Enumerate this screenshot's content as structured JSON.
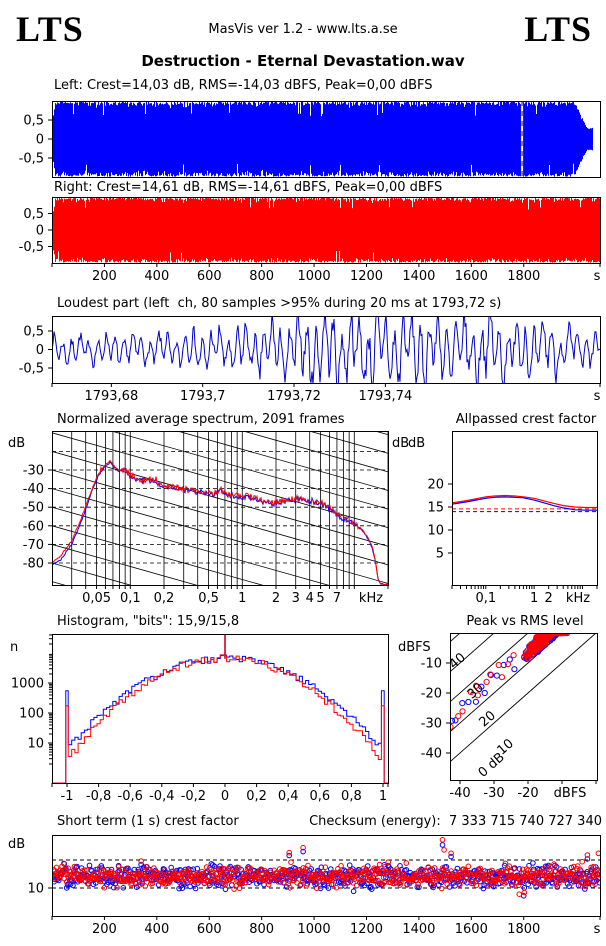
{
  "header": {
    "logo_left": "LTS",
    "logo_right": "LTS",
    "center_text": "MasVis ver 1.2 - www.lts.a.se",
    "file_title": "Destruction - Eternal Devastation.wav"
  },
  "colors": {
    "blue": "#0000ff",
    "red": "#ff0000",
    "line_blue": "#0000cc"
  },
  "chart_data": [
    {
      "type": "waveform",
      "channel": "left",
      "label": "Left: Crest=14,03 dB, RMS=-14,03 dBFS, Peak=0,00 dBFS",
      "crest_db": "14,03",
      "rms_dbfs": "-14,03",
      "peak_dbfs": "0,00",
      "color": "#0000ff",
      "duration_s": 2091,
      "marker_s": 1793.72,
      "ytick_labels": [
        "0,5",
        "0",
        "-0,5"
      ],
      "ytick_values": [
        0.5,
        0,
        -0.5
      ],
      "ylim": [
        -1,
        1
      ]
    },
    {
      "type": "waveform",
      "channel": "right",
      "label": "Right: Crest=14,61 dB, RMS=-14,61 dBFS, Peak=0,00 dBFS",
      "crest_db": "14,61",
      "rms_dbfs": "-14,61",
      "peak_dbfs": "0,00",
      "color": "#ff0000",
      "duration_s": 2091,
      "ytick_labels": [
        "0,5",
        "0",
        "-0,5"
      ],
      "ytick_values": [
        0.5,
        0,
        -0.5
      ],
      "ylim": [
        -1,
        1
      ],
      "xtick_labels": [
        "200",
        "400",
        "600",
        "800",
        "1000",
        "1200",
        "1400",
        "1600",
        "1800"
      ],
      "xtick_values": [
        200,
        400,
        600,
        800,
        1000,
        1200,
        1400,
        1600,
        1800
      ],
      "x_unit": "s"
    },
    {
      "type": "line",
      "title": "Loudest part (left  ch, 80 samples >95% during 20 ms at 1793,72 s)",
      "color": "#0000cc",
      "x_range": [
        1793.667,
        1793.787
      ],
      "xtick_labels": [
        "1793,68",
        "1793,7",
        "1793,72",
        "1793,74"
      ],
      "xtick_values": [
        1793.68,
        1793.7,
        1793.72,
        1793.74
      ],
      "x_unit": "s",
      "ytick_labels": [
        "0,5",
        "0",
        "-0,5"
      ],
      "ytick_values": [
        0.5,
        0,
        -0.5
      ],
      "ylim": [
        -0.905,
        0.905
      ]
    },
    {
      "type": "line",
      "title": "Normalized average spectrum, 2091 frames",
      "frames": 2091,
      "ylabel": "dB",
      "ylabel_right": "dB",
      "x_unit": "kHz",
      "x_log_range_khz": [
        0.02,
        20
      ],
      "xtick_labels": [
        "0,05",
        "0,1",
        "0,2",
        "0,5",
        "1",
        "2",
        "3",
        "4",
        "5",
        "7"
      ],
      "xtick_values": [
        0.05,
        0.1,
        0.2,
        0.5,
        1,
        2,
        3,
        4,
        5,
        7
      ],
      "xgrid_values": [
        0.03,
        0.04,
        0.05,
        0.06,
        0.07,
        0.08,
        0.09,
        0.1,
        0.2,
        0.3,
        0.4,
        0.5,
        0.6,
        0.7,
        0.8,
        0.9,
        1,
        2,
        3,
        4,
        5,
        6,
        7,
        8,
        9,
        10,
        20
      ],
      "ytick_labels": [
        "-30",
        "-40",
        "-50",
        "-60",
        "-70",
        "-80"
      ],
      "ytick_values": [
        -30,
        -40,
        -50,
        -60,
        -70,
        -80
      ],
      "ygrid_dashed": [
        -20,
        -30,
        -40,
        -50,
        -60,
        -70,
        -80
      ],
      "diagonal_slope_db_per_decade": -17,
      "series": [
        {
          "name": "left",
          "color": "#0000ff",
          "points": [
            [
              0.02,
              -81
            ],
            [
              0.024,
              -78
            ],
            [
              0.03,
              -70
            ],
            [
              0.037,
              -57
            ],
            [
              0.045,
              -42
            ],
            [
              0.052,
              -33
            ],
            [
              0.06,
              -28
            ],
            [
              0.066,
              -25.8
            ],
            [
              0.072,
              -28.5
            ],
            [
              0.08,
              -31
            ],
            [
              0.088,
              -29.5
            ],
            [
              0.1,
              -33
            ],
            [
              0.115,
              -35
            ],
            [
              0.13,
              -36
            ],
            [
              0.15,
              -35.5
            ],
            [
              0.18,
              -38
            ],
            [
              0.22,
              -39
            ],
            [
              0.28,
              -40
            ],
            [
              0.35,
              -41.5
            ],
            [
              0.45,
              -42
            ],
            [
              0.55,
              -43
            ],
            [
              0.65,
              -40.8
            ],
            [
              0.75,
              -43.5
            ],
            [
              0.9,
              -44
            ],
            [
              1.1,
              -44.5
            ],
            [
              1.4,
              -46
            ],
            [
              1.8,
              -48.5
            ],
            [
              2.2,
              -47
            ],
            [
              2.8,
              -46
            ],
            [
              3.5,
              -45.8
            ],
            [
              4.2,
              -47
            ],
            [
              5,
              -48
            ],
            [
              6,
              -51
            ],
            [
              7,
              -54.5
            ],
            [
              8,
              -56.5
            ],
            [
              9,
              -57.5
            ],
            [
              10,
              -59
            ],
            [
              11.5,
              -62
            ],
            [
              13,
              -66
            ],
            [
              14.5,
              -72
            ],
            [
              15.5,
              -80
            ],
            [
              16.2,
              -88
            ],
            [
              17,
              -91
            ],
            [
              20,
              -91.5
            ]
          ]
        },
        {
          "name": "right",
          "color": "#ff0000",
          "points": [
            [
              0.02,
              -80
            ],
            [
              0.024,
              -76
            ],
            [
              0.03,
              -68
            ],
            [
              0.037,
              -55
            ],
            [
              0.045,
              -41
            ],
            [
              0.052,
              -32
            ],
            [
              0.06,
              -27
            ],
            [
              0.066,
              -25
            ],
            [
              0.072,
              -28
            ],
            [
              0.08,
              -30.5
            ],
            [
              0.088,
              -29
            ],
            [
              0.1,
              -32.5
            ],
            [
              0.115,
              -34.5
            ],
            [
              0.13,
              -35.5
            ],
            [
              0.15,
              -35
            ],
            [
              0.18,
              -37.5
            ],
            [
              0.22,
              -38.5
            ],
            [
              0.28,
              -39.5
            ],
            [
              0.35,
              -41
            ],
            [
              0.45,
              -41.5
            ],
            [
              0.55,
              -42.5
            ],
            [
              0.65,
              -40.5
            ],
            [
              0.75,
              -43
            ],
            [
              0.9,
              -43.5
            ],
            [
              1.1,
              -44
            ],
            [
              1.4,
              -45.5
            ],
            [
              1.8,
              -48
            ],
            [
              2.2,
              -46.5
            ],
            [
              2.8,
              -45.5
            ],
            [
              3.5,
              -45.5
            ],
            [
              4.2,
              -46.5
            ],
            [
              5,
              -47.5
            ],
            [
              6,
              -50.5
            ],
            [
              7,
              -54
            ],
            [
              8,
              -56
            ],
            [
              9,
              -57
            ],
            [
              10,
              -58.5
            ],
            [
              11.5,
              -61.5
            ],
            [
              13,
              -65.5
            ],
            [
              14.5,
              -71.5
            ],
            [
              15.5,
              -79
            ],
            [
              16.2,
              -88
            ],
            [
              17,
              -91
            ],
            [
              20,
              -91.5
            ]
          ]
        }
      ]
    },
    {
      "type": "line",
      "title": "Allpassed crest factor",
      "ylabel": "dB",
      "x_unit": "kHz",
      "x_log_range_khz": [
        0.02,
        20
      ],
      "xtick_labels": [
        "0,1",
        "1",
        "2"
      ],
      "xtick_values": [
        0.1,
        1,
        2
      ],
      "ytick_labels": [
        "20",
        "15",
        "10",
        "5"
      ],
      "ytick_values": [
        20,
        15,
        10,
        5
      ],
      "series": [
        {
          "name": "left",
          "color": "#0000ff",
          "points": [
            [
              0.02,
              15.6
            ],
            [
              0.04,
              16.1
            ],
            [
              0.07,
              16.6
            ],
            [
              0.1,
              16.9
            ],
            [
              0.15,
              17.1
            ],
            [
              0.25,
              17.2
            ],
            [
              0.4,
              17.1
            ],
            [
              0.6,
              17
            ],
            [
              1,
              16.5
            ],
            [
              1.5,
              16
            ],
            [
              2.5,
              15.3
            ],
            [
              4,
              14.8
            ],
            [
              7,
              14.4
            ],
            [
              12,
              14.3
            ],
            [
              20,
              14.3
            ]
          ]
        },
        {
          "name": "right",
          "color": "#ff0000",
          "points": [
            [
              0.02,
              15.9
            ],
            [
              0.04,
              16.4
            ],
            [
              0.07,
              16.9
            ],
            [
              0.1,
              17.2
            ],
            [
              0.15,
              17.4
            ],
            [
              0.25,
              17.5
            ],
            [
              0.4,
              17.4
            ],
            [
              0.6,
              17.2
            ],
            [
              1,
              16.9
            ],
            [
              1.5,
              16.4
            ],
            [
              2.5,
              15.8
            ],
            [
              4,
              15.3
            ],
            [
              7,
              15
            ],
            [
              12,
              14.9
            ],
            [
              20,
              14.9
            ]
          ]
        }
      ],
      "dashed_reference": {
        "left": 14.0,
        "right": 14.6
      }
    },
    {
      "type": "histogram",
      "title": "Histogram, \"bits\": 15,9/15,8",
      "bits": "15,9/15,8",
      "ylabel": "n",
      "yscale": "log",
      "ytick_labels": [
        "1000",
        "100",
        "10"
      ],
      "ytick_values": [
        1000,
        100,
        10
      ],
      "xtick_labels": [
        "-1",
        "-0,8",
        "-0,6",
        "-0,4",
        "-0,2",
        "0",
        "0,2",
        "0,4",
        "0,6",
        "0,8",
        "1"
      ],
      "xtick_values": [
        -1,
        -0.8,
        -0.6,
        -0.4,
        -0.2,
        0,
        0.2,
        0.4,
        0.6,
        0.8,
        1
      ],
      "peak_n": 6800,
      "center_spike_to_top": true,
      "edge_spike_n": {
        "left_channel": 550,
        "right_channel": 175
      },
      "bell_log_decay": {
        "left_channel": 3.05,
        "right_channel": 3.42
      },
      "colors": {
        "left_channel": "#0000ff",
        "right_channel": "#ff0000"
      }
    },
    {
      "type": "scatter",
      "title": "Peak vs RMS level",
      "ylabel": "dBFS",
      "x_unit": "dBFS",
      "xtick_labels": [
        "-40",
        "-30",
        "-20"
      ],
      "xtick_values": [
        -40,
        -30,
        -20
      ],
      "xtick_minor_values": [
        -10,
        0
      ],
      "ytick_labels": [
        "-10",
        "-20",
        "-30",
        "-40"
      ],
      "ytick_values": [
        -10,
        -20,
        -30,
        -40
      ],
      "diagonal_labels": [
        "40",
        "30",
        "20",
        "10",
        "0 dB"
      ],
      "diagonal_crest_values": [
        40,
        30,
        20,
        10,
        0
      ],
      "xlim": [
        -43,
        0.3
      ],
      "ylim": [
        -49,
        0
      ],
      "cluster": {
        "rms_mean": -15,
        "rms_spread": 5,
        "rms_min": -23,
        "rms_max": -8.5,
        "crest_mean": 13.8,
        "crest_spread": 2.6,
        "count_per_channel": 330
      },
      "trail": {
        "rms_from": -45,
        "rms_to": -23,
        "crest_min": 11.5,
        "crest_max": 18,
        "count": 13
      }
    },
    {
      "type": "scatter",
      "title": "Short term (1 s) crest factor",
      "checksum_label": "Checksum (energy):",
      "checksum_value": "7 333 715 740 727 340",
      "checksum": "Checksum (energy):  7 333 715 740 727 340",
      "ylabel": "dB",
      "ytick_labels": [
        "10"
      ],
      "ytick_values": [
        10
      ],
      "dashed_values": [
        15,
        10
      ],
      "band_mean_db": {
        "left_channel": 12.0,
        "right_channel": 12.15
      },
      "xtick_labels": [
        "200",
        "400",
        "600",
        "800",
        "1000",
        "1200",
        "1400",
        "1600",
        "1800"
      ],
      "xtick_values": [
        200,
        400,
        600,
        800,
        1000,
        1200,
        1400,
        1600,
        1800
      ],
      "x_unit": "s",
      "duration_s": 2091,
      "outliers_red": [
        [
          45,
          14.4
        ],
        [
          340,
          14.8
        ],
        [
          905,
          16.3
        ],
        [
          912,
          14.6
        ],
        [
          958,
          17.2
        ],
        [
          1283,
          14.6
        ],
        [
          1490,
          18.6
        ],
        [
          1496,
          16.8
        ],
        [
          1523,
          16.2
        ],
        [
          1730,
          14.4
        ],
        [
          1745,
          13.9
        ],
        [
          1783,
          8.9
        ],
        [
          1802,
          9.2
        ],
        [
          2023,
          14.7
        ],
        [
          2043,
          15.9
        ],
        [
          2085,
          16.2
        ]
      ],
      "outliers_blue": [
        [
          340,
          14.2
        ],
        [
          613,
          14.1
        ],
        [
          905,
          15.8
        ],
        [
          958,
          16.5
        ],
        [
          1283,
          14.0
        ],
        [
          1490,
          17.7
        ],
        [
          1523,
          15.6
        ],
        [
          1800,
          8.6
        ],
        [
          2043,
          15.2
        ]
      ]
    }
  ]
}
